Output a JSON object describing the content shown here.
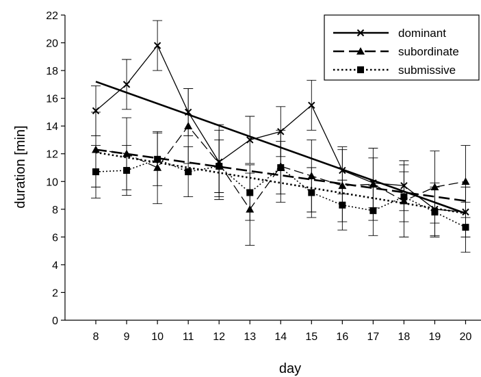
{
  "chart_data": {
    "type": "line",
    "title": "",
    "xlabel": "day",
    "ylabel": "duration [min]",
    "x": [
      8,
      9,
      10,
      11,
      12,
      13,
      14,
      15,
      16,
      17,
      18,
      19,
      20
    ],
    "xlim": [
      7,
      20.5
    ],
    "ylim": [
      0,
      22
    ],
    "yticks": [
      0,
      2,
      4,
      6,
      8,
      10,
      12,
      14,
      16,
      18,
      20,
      22
    ],
    "grid": false,
    "legend_position": "top-right",
    "series": [
      {
        "name": "dominant",
        "marker": "x",
        "line_style": "solid",
        "values": [
          15.1,
          17.0,
          19.8,
          15.0,
          11.4,
          13.0,
          13.6,
          15.5,
          10.8,
          9.9,
          9.7,
          8.0,
          7.8
        ],
        "error": [
          1.8,
          1.8,
          1.8,
          1.7,
          2.7,
          1.7,
          1.8,
          1.8,
          1.7,
          1.8,
          1.8,
          1.9,
          1.8
        ],
        "trend": [
          17.2,
          7.7
        ]
      },
      {
        "name": "subordinate",
        "marker": "triangle",
        "line_style": "dashed",
        "values": [
          12.3,
          12.0,
          11.0,
          14.0,
          11.3,
          8.0,
          11.1,
          10.4,
          9.7,
          9.8,
          8.6,
          9.6,
          10.0
        ],
        "error": [
          2.7,
          2.6,
          2.6,
          2.7,
          2.4,
          2.6,
          2.6,
          2.6,
          2.6,
          2.6,
          2.6,
          2.6,
          2.6
        ],
        "trend": [
          12.3,
          8.6
        ]
      },
      {
        "name": "submissive",
        "marker": "square",
        "line_style": "dotted",
        "values": [
          10.7,
          10.8,
          11.6,
          10.7,
          11.1,
          9.2,
          11.0,
          9.2,
          8.3,
          7.9,
          8.9,
          7.8,
          6.7
        ],
        "error": [
          1.9,
          1.8,
          1.9,
          1.8,
          1.9,
          2.0,
          1.9,
          1.8,
          1.8,
          1.8,
          1.8,
          1.8,
          1.8
        ],
        "trend": [
          12.1,
          7.7
        ]
      }
    ]
  }
}
